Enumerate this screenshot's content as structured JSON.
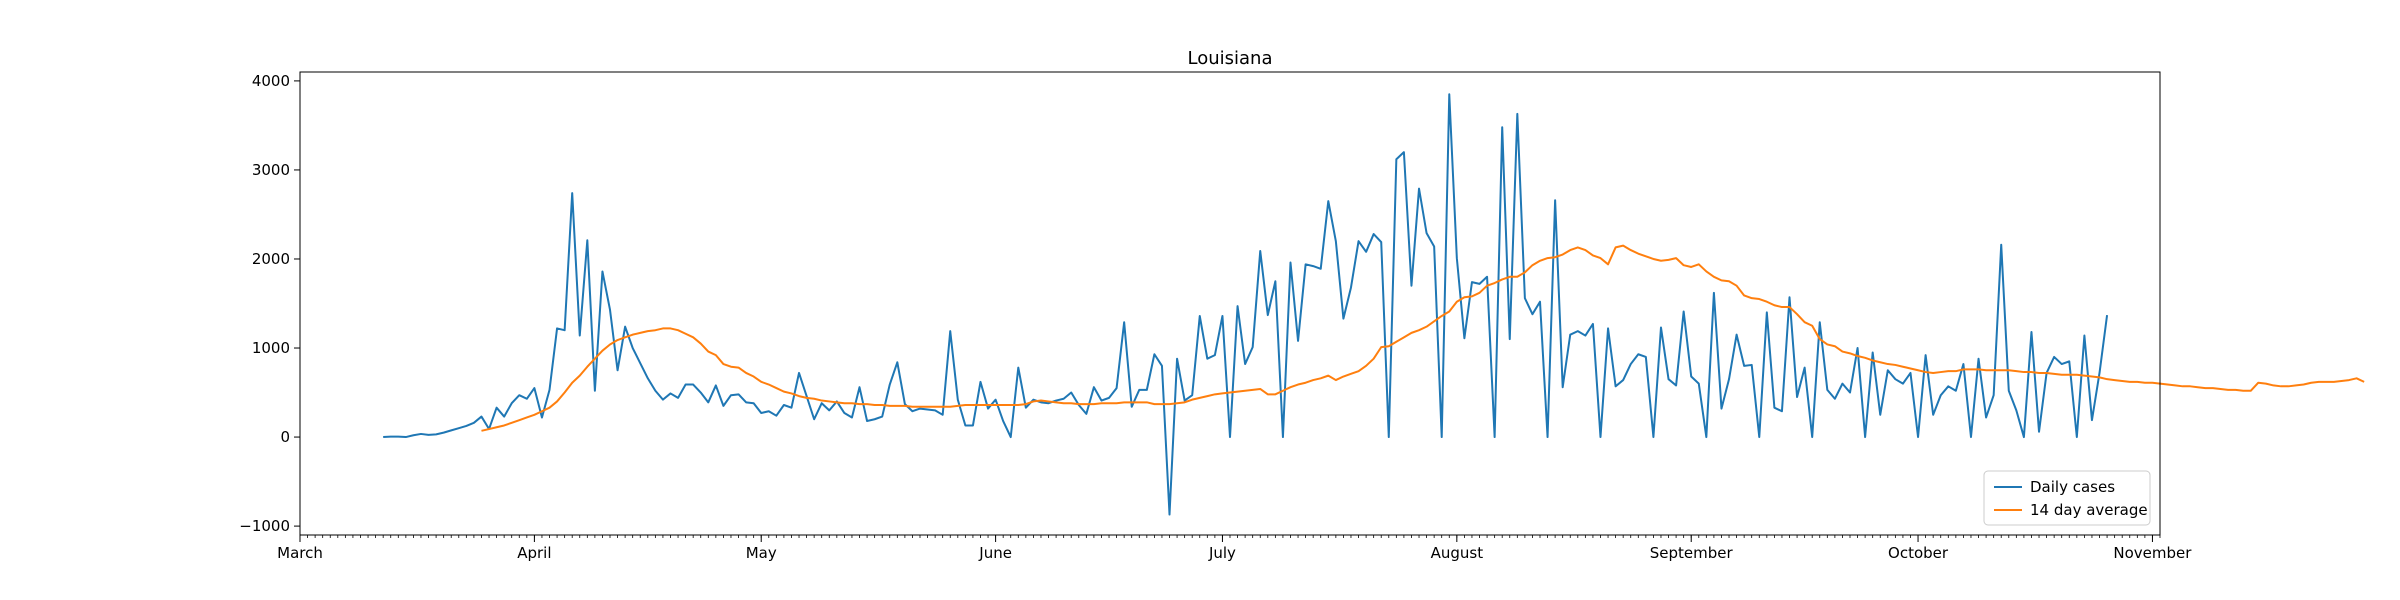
{
  "chart_data": {
    "type": "line",
    "title": "Louisiana",
    "xlabel": "",
    "ylabel": "",
    "x_start": "2020-02-29",
    "xlim": [
      "2020-02-29",
      "2020-11-01"
    ],
    "ylim": [
      -1100,
      4100
    ],
    "y_ticks": [
      -1000,
      0,
      1000,
      2000,
      3000,
      4000
    ],
    "x_ticks": [
      {
        "date": "2020-02-29",
        "label": "March"
      },
      {
        "date": "2020-03-31",
        "label": "April"
      },
      {
        "date": "2020-04-30",
        "label": "May"
      },
      {
        "date": "2020-05-31",
        "label": "June"
      },
      {
        "date": "2020-06-30",
        "label": "July"
      },
      {
        "date": "2020-07-31",
        "label": "August"
      },
      {
        "date": "2020-08-31",
        "label": "September"
      },
      {
        "date": "2020-09-30",
        "label": "October"
      },
      {
        "date": "2020-10-31",
        "label": "November"
      }
    ],
    "legend_position": "lower-right",
    "series": [
      {
        "name": "Daily cases",
        "color": "#1f77b4",
        "start_date": "2020-03-11",
        "values": [
          0,
          5,
          5,
          0,
          20,
          35,
          25,
          30,
          50,
          75,
          100,
          125,
          160,
          230,
          90,
          330,
          230,
          380,
          470,
          430,
          550,
          220,
          530,
          1220,
          1200,
          2740,
          1140,
          2210,
          520,
          1860,
          1430,
          750,
          1240,
          1000,
          830,
          660,
          520,
          420,
          490,
          440,
          590,
          590,
          500,
          390,
          580,
          350,
          470,
          480,
          390,
          380,
          270,
          290,
          240,
          360,
          330,
          720,
          460,
          200,
          380,
          300,
          400,
          270,
          220,
          560,
          180,
          200,
          230,
          590,
          840,
          370,
          290,
          320,
          310,
          300,
          250,
          1190,
          420,
          130,
          130,
          620,
          320,
          420,
          180,
          0,
          780,
          330,
          420,
          390,
          380,
          410,
          430,
          500,
          360,
          260,
          560,
          410,
          440,
          550,
          1290,
          340,
          530,
          530,
          930,
          800,
          -870,
          880,
          410,
          470,
          1360,
          880,
          920,
          1360,
          0,
          1470,
          820,
          1010,
          2090,
          1370,
          1750,
          0,
          1960,
          1080,
          1940,
          1920,
          1890,
          2650,
          2200,
          1330,
          1680,
          2200,
          2080,
          2280,
          2190,
          0,
          3120,
          3200,
          1700,
          2790,
          2290,
          2140,
          0,
          3850,
          2010,
          1110,
          1740,
          1720,
          1800,
          0,
          3480,
          1100,
          3630,
          1560,
          1380,
          1520,
          0,
          2660,
          560,
          1150,
          1190,
          1140,
          1270,
          0,
          1220,
          570,
          640,
          820,
          930,
          900,
          0,
          1230,
          650,
          580,
          1410,
          680,
          600,
          0,
          1620,
          320,
          650,
          1150,
          800,
          810,
          0,
          1400,
          330,
          290,
          1570,
          450,
          780,
          0,
          1290,
          530,
          430,
          600,
          500,
          1000,
          0,
          950,
          250,
          750,
          650,
          600,
          720,
          0,
          920,
          250,
          470,
          570,
          520,
          820,
          0,
          880,
          220,
          470,
          2160,
          520,
          300,
          0,
          1180,
          60,
          720,
          900,
          820,
          850,
          0,
          1140,
          190,
          720,
          1370
        ]
      },
      {
        "name": "14 day average",
        "color": "#ff7f0e",
        "start_date": "2020-03-24",
        "values": [
          70,
          90,
          110,
          130,
          160,
          190,
          220,
          250,
          290,
          330,
          400,
          500,
          610,
          690,
          790,
          880,
          970,
          1040,
          1090,
          1120,
          1150,
          1170,
          1190,
          1200,
          1220,
          1220,
          1200,
          1160,
          1120,
          1050,
          960,
          920,
          820,
          790,
          780,
          720,
          680,
          620,
          590,
          550,
          510,
          490,
          460,
          440,
          430,
          410,
          400,
          390,
          380,
          380,
          370,
          370,
          360,
          360,
          350,
          350,
          350,
          340,
          340,
          340,
          340,
          340,
          340,
          350,
          360,
          360,
          360,
          360,
          360,
          360,
          360,
          360,
          370,
          400,
          410,
          400,
          390,
          380,
          380,
          370,
          370,
          370,
          380,
          380,
          380,
          390,
          390,
          390,
          390,
          370,
          370,
          370,
          380,
          390,
          420,
          440,
          460,
          480,
          490,
          500,
          510,
          520,
          530,
          540,
          480,
          480,
          520,
          560,
          590,
          610,
          640,
          660,
          690,
          640,
          680,
          710,
          740,
          800,
          880,
          1010,
          1020,
          1070,
          1120,
          1170,
          1200,
          1240,
          1300,
          1360,
          1410,
          1520,
          1570,
          1580,
          1620,
          1700,
          1730,
          1770,
          1800,
          1800,
          1850,
          1930,
          1980,
          2010,
          2020,
          2050,
          2100,
          2130,
          2100,
          2040,
          2010,
          1940,
          2130,
          2150,
          2100,
          2060,
          2030,
          2000,
          1980,
          1990,
          2010,
          1930,
          1910,
          1940,
          1860,
          1800,
          1760,
          1750,
          1700,
          1590,
          1560,
          1550,
          1520,
          1480,
          1460,
          1460,
          1380,
          1290,
          1250,
          1100,
          1040,
          1020,
          960,
          940,
          910,
          890,
          860,
          840,
          820,
          810,
          790,
          770,
          750,
          730,
          720,
          730,
          740,
          740,
          760,
          760,
          760,
          750,
          750,
          750,
          750,
          740,
          730,
          730,
          720,
          720,
          710,
          700,
          700,
          700,
          690,
          680,
          670,
          650,
          640,
          630,
          620,
          620,
          610,
          610,
          600,
          590,
          580,
          570,
          570,
          560,
          550,
          550,
          540,
          530,
          530,
          520,
          520,
          610,
          600,
          580,
          570,
          570,
          580,
          590,
          610,
          620,
          620,
          620,
          630,
          640,
          660,
          620
        ]
      }
    ]
  }
}
